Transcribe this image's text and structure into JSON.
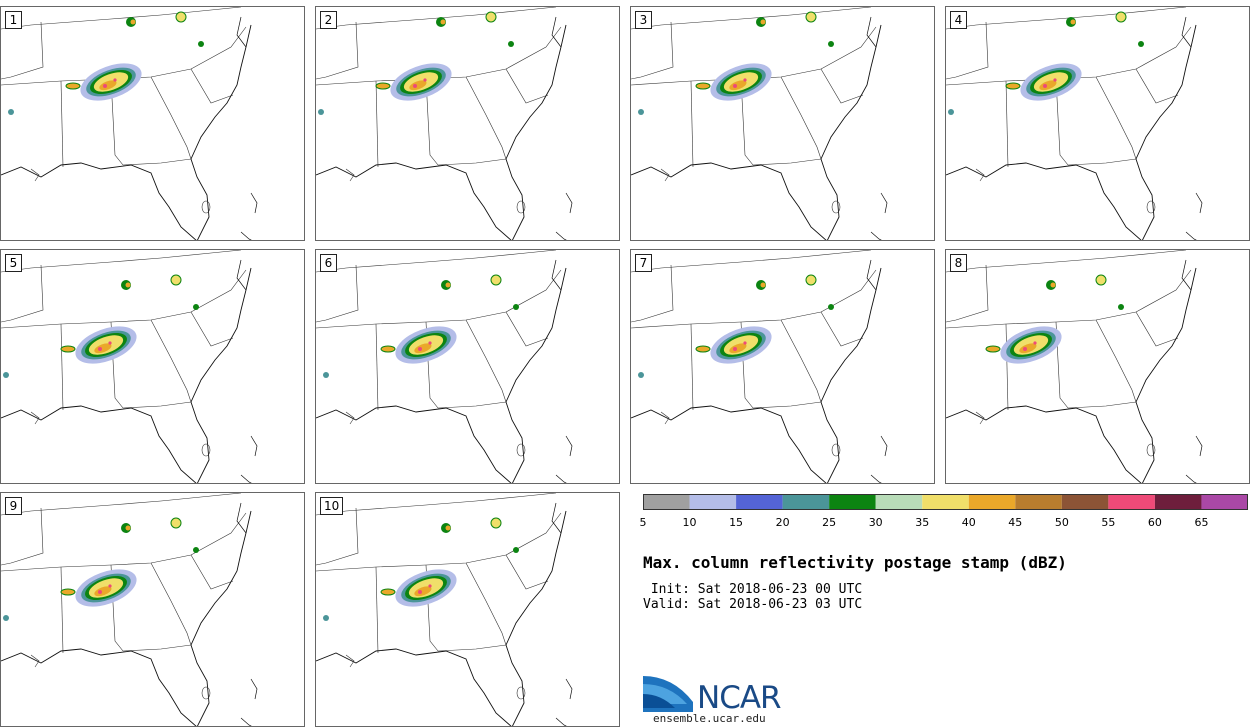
{
  "panels": [
    {
      "label": "1"
    },
    {
      "label": "2"
    },
    {
      "label": "3"
    },
    {
      "label": "4"
    },
    {
      "label": "5"
    },
    {
      "label": "6"
    },
    {
      "label": "7"
    },
    {
      "label": "8"
    },
    {
      "label": "9"
    },
    {
      "label": "10"
    }
  ],
  "colorbar": {
    "colors": [
      "#a0a0a0",
      "#b4bde8",
      "#5464d6",
      "#4b9599",
      "#0c8411",
      "#b8dcb8",
      "#f0df6a",
      "#eaa82a",
      "#b87d2e",
      "#8c5436",
      "#ee4a78",
      "#6e1e3c",
      "#aa48a6"
    ],
    "ticks": [
      "5",
      "10",
      "15",
      "20",
      "25",
      "30",
      "35",
      "40",
      "45",
      "50",
      "55",
      "60",
      "65"
    ]
  },
  "title": "Max. column reflectivity postage stamp (dBZ)",
  "init_line": " Init: Sat 2018-06-23 00 UTC",
  "valid_line": "Valid: Sat 2018-06-23 03 UTC",
  "logo": {
    "text": "NCAR",
    "url": "ensemble.ucar.edu"
  }
}
